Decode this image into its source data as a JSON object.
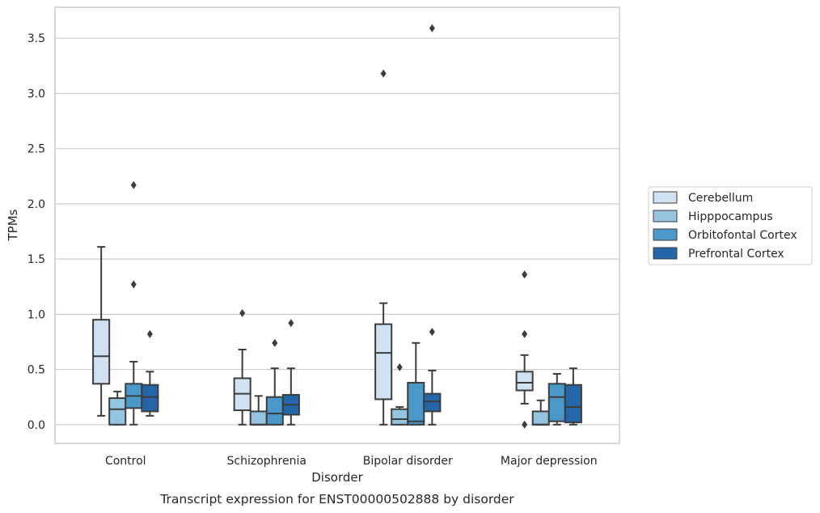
{
  "chart_data": {
    "type": "box",
    "title": "",
    "caption": "Transcript expression for ENST00000502888 by disorder",
    "xlabel": "Disorder",
    "ylabel": "TPMs",
    "ylim": [
      -0.17,
      3.78
    ],
    "yticks": [
      0.0,
      0.5,
      1.0,
      1.5,
      2.0,
      2.5,
      3.0,
      3.5
    ],
    "ytick_labels": [
      "0.0",
      "0.5",
      "1.0",
      "1.5",
      "2.0",
      "2.5",
      "3.0",
      "3.5"
    ],
    "grid": "horizontal",
    "legend_position": "right",
    "categories": [
      "Control",
      "Schizophrenia",
      "Bipolar disorder",
      "Major depression"
    ],
    "series": [
      {
        "name": "Cerebellum",
        "color": "#d0e1f2",
        "boxes": [
          {
            "whislo": 0.08,
            "q1": 0.37,
            "med": 0.62,
            "q3": 0.95,
            "whishi": 1.61,
            "fliers": []
          },
          {
            "whislo": 0.0,
            "q1": 0.13,
            "med": 0.28,
            "q3": 0.42,
            "whishi": 0.68,
            "fliers": [
              1.01
            ]
          },
          {
            "whislo": 0.0,
            "q1": 0.23,
            "med": 0.65,
            "q3": 0.91,
            "whishi": 1.1,
            "fliers": [
              3.18
            ]
          },
          {
            "whislo": 0.19,
            "q1": 0.31,
            "med": 0.38,
            "q3": 0.48,
            "whishi": 0.63,
            "fliers": [
              1.36,
              0.82,
              0.0
            ]
          }
        ]
      },
      {
        "name": "Hipppocampus",
        "color": "#94c4df",
        "boxes": [
          {
            "whislo": 0.0,
            "q1": 0.0,
            "med": 0.14,
            "q3": 0.24,
            "whishi": 0.3,
            "fliers": []
          },
          {
            "whislo": 0.0,
            "q1": 0.0,
            "med": 0.0,
            "q3": 0.12,
            "whishi": 0.26,
            "fliers": []
          },
          {
            "whislo": 0.0,
            "q1": 0.0,
            "med": 0.05,
            "q3": 0.14,
            "whishi": 0.16,
            "fliers": [
              0.52
            ]
          },
          {
            "whislo": 0.0,
            "q1": 0.0,
            "med": 0.0,
            "q3": 0.12,
            "whishi": 0.22,
            "fliers": []
          }
        ]
      },
      {
        "name": "Orbitofontal Cortex",
        "color": "#4a98c9",
        "boxes": [
          {
            "whislo": 0.0,
            "q1": 0.15,
            "med": 0.26,
            "q3": 0.37,
            "whishi": 0.57,
            "fliers": [
              2.17,
              1.27
            ]
          },
          {
            "whislo": 0.0,
            "q1": 0.0,
            "med": 0.1,
            "q3": 0.25,
            "whishi": 0.51,
            "fliers": [
              0.74
            ]
          },
          {
            "whislo": 0.0,
            "q1": 0.0,
            "med": 0.03,
            "q3": 0.38,
            "whishi": 0.74,
            "fliers": []
          },
          {
            "whislo": 0.0,
            "q1": 0.03,
            "med": 0.25,
            "q3": 0.37,
            "whishi": 0.46,
            "fliers": []
          }
        ]
      },
      {
        "name": "Prefrontal Cortex",
        "color": "#2565a9",
        "boxes": [
          {
            "whislo": 0.08,
            "q1": 0.12,
            "med": 0.25,
            "q3": 0.36,
            "whishi": 0.48,
            "fliers": [
              0.82
            ]
          },
          {
            "whislo": 0.0,
            "q1": 0.09,
            "med": 0.18,
            "q3": 0.27,
            "whishi": 0.51,
            "fliers": [
              0.92
            ]
          },
          {
            "whislo": 0.0,
            "q1": 0.12,
            "med": 0.21,
            "q3": 0.28,
            "whishi": 0.49,
            "fliers": [
              0.84,
              3.59
            ]
          },
          {
            "whislo": 0.0,
            "q1": 0.02,
            "med": 0.16,
            "q3": 0.36,
            "whishi": 0.51,
            "fliers": []
          }
        ]
      }
    ]
  }
}
